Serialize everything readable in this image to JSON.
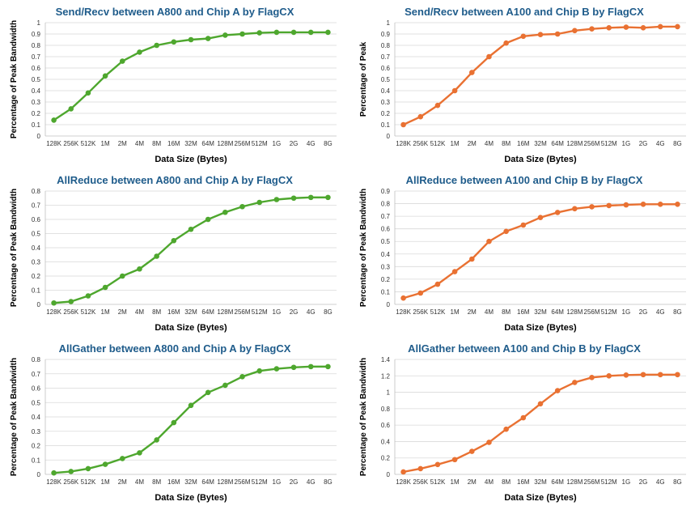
{
  "chart_data": [
    {
      "type": "line",
      "title": "Send/Recv between A800 and Chip A by FlagCX",
      "xlabel": "Data Size (Bytes)",
      "ylabel": "Percentage of Peak Bandwidth",
      "categories": [
        "128K",
        "256K",
        "512K",
        "1M",
        "2M",
        "4M",
        "8M",
        "16M",
        "32M",
        "64M",
        "128M",
        "256M",
        "512M",
        "1G",
        "2G",
        "4G",
        "8G"
      ],
      "ylim": [
        0,
        1
      ],
      "ystep": 0.1,
      "yticks": [
        "0",
        "0.1",
        "0.2",
        "0.3",
        "0.4",
        "0.5",
        "0.6",
        "0.7",
        "0.8",
        "0.9",
        "1"
      ],
      "color": "#4ea72e",
      "title_color": "#1f5c8b",
      "grid": true,
      "series": [
        {
          "values": [
            0.14,
            0.24,
            0.38,
            0.53,
            0.66,
            0.74,
            0.8,
            0.83,
            0.85,
            0.86,
            0.89,
            0.9,
            0.91,
            0.915,
            0.915,
            0.915,
            0.915
          ]
        }
      ]
    },
    {
      "type": "line",
      "title": "Send/Recv between A100 and Chip B by FlagCX",
      "xlabel": "Data Size (Bytes)",
      "ylabel": "Percentage of Peak",
      "categories": [
        "128K",
        "256K",
        "512K",
        "1M",
        "2M",
        "4M",
        "8M",
        "16M",
        "32M",
        "64M",
        "128M",
        "256M",
        "512M",
        "1G",
        "2G",
        "4G",
        "8G"
      ],
      "ylim": [
        0,
        1
      ],
      "ystep": 0.1,
      "yticks": [
        "0",
        "0.1",
        "0.2",
        "0.3",
        "0.4",
        "0.5",
        "0.6",
        "0.7",
        "0.8",
        "0.9",
        "1"
      ],
      "color": "#e97132",
      "title_color": "#1f5c8b",
      "grid": true,
      "series": [
        {
          "values": [
            0.1,
            0.17,
            0.27,
            0.4,
            0.56,
            0.7,
            0.82,
            0.88,
            0.895,
            0.9,
            0.93,
            0.945,
            0.955,
            0.96,
            0.955,
            0.965,
            0.965
          ]
        }
      ]
    },
    {
      "type": "line",
      "title": "AllReduce between A800 and Chip A by FlagCX",
      "xlabel": "Data Size (Bytes)",
      "ylabel": "Percentage of Peak Bandwidth",
      "categories": [
        "128K",
        "256K",
        "512K",
        "1M",
        "2M",
        "4M",
        "8M",
        "16M",
        "32M",
        "64M",
        "128M",
        "256M",
        "512M",
        "1G",
        "2G",
        "4G",
        "8G"
      ],
      "ylim": [
        0,
        0.8
      ],
      "ystep": 0.1,
      "yticks": [
        "0",
        "0.1",
        "0.2",
        "0.3",
        "0.4",
        "0.5",
        "0.6",
        "0.7",
        "0.8"
      ],
      "color": "#4ea72e",
      "title_color": "#1f5c8b",
      "grid": true,
      "series": [
        {
          "values": [
            0.01,
            0.02,
            0.06,
            0.12,
            0.2,
            0.25,
            0.34,
            0.45,
            0.53,
            0.6,
            0.65,
            0.69,
            0.72,
            0.74,
            0.75,
            0.755,
            0.755
          ]
        }
      ]
    },
    {
      "type": "line",
      "title": "AllReduce between A100 and Chip B by FlagCX",
      "xlabel": "Data Size (Bytes)",
      "ylabel": "Percentage of Peak Bandwidth",
      "categories": [
        "128K",
        "256K",
        "512K",
        "1M",
        "2M",
        "4M",
        "8M",
        "16M",
        "32M",
        "64M",
        "128M",
        "256M",
        "512M",
        "1G",
        "2G",
        "4G",
        "8G"
      ],
      "ylim": [
        0,
        0.9
      ],
      "ystep": 0.1,
      "yticks": [
        "0",
        "0.1",
        "0.2",
        "0.3",
        "0.4",
        "0.5",
        "0.6",
        "0.7",
        "0.8",
        "0.9"
      ],
      "color": "#e97132",
      "title_color": "#1f5c8b",
      "grid": true,
      "series": [
        {
          "values": [
            0.05,
            0.09,
            0.16,
            0.26,
            0.36,
            0.5,
            0.58,
            0.63,
            0.69,
            0.73,
            0.76,
            0.775,
            0.785,
            0.79,
            0.795,
            0.795,
            0.795
          ]
        }
      ]
    },
    {
      "type": "line",
      "title": "AllGather between A800 and Chip A by FlagCX",
      "xlabel": "Data Size (Bytes)",
      "ylabel": "Percentage of Peak Bandwidth",
      "categories": [
        "128K",
        "256K",
        "512K",
        "1M",
        "2M",
        "4M",
        "8M",
        "16M",
        "32M",
        "64M",
        "128M",
        "256M",
        "512M",
        "1G",
        "2G",
        "4G",
        "8G"
      ],
      "ylim": [
        0,
        0.8
      ],
      "ystep": 0.1,
      "yticks": [
        "0",
        "0.1",
        "0.2",
        "0.3",
        "0.4",
        "0.5",
        "0.6",
        "0.7",
        "0.8"
      ],
      "color": "#4ea72e",
      "title_color": "#1f5c8b",
      "grid": true,
      "series": [
        {
          "values": [
            0.01,
            0.02,
            0.04,
            0.07,
            0.11,
            0.15,
            0.24,
            0.36,
            0.48,
            0.57,
            0.62,
            0.68,
            0.72,
            0.735,
            0.745,
            0.75,
            0.75
          ]
        }
      ]
    },
    {
      "type": "line",
      "title": "AllGather between A100 and Chip B by FlagCX",
      "xlabel": "Data Size (Bytes)",
      "ylabel": "Percentage of Peak Bandwidth",
      "categories": [
        "128K",
        "256K",
        "512K",
        "1M",
        "2M",
        "4M",
        "8M",
        "16M",
        "32M",
        "64M",
        "128M",
        "256M",
        "512M",
        "1G",
        "2G",
        "4G",
        "8G"
      ],
      "ylim": [
        0,
        1.4
      ],
      "ystep": 0.2,
      "yticks": [
        "0",
        "0.2",
        "0.4",
        "0.6",
        "0.8",
        "1",
        "1.2",
        "1.4"
      ],
      "color": "#e97132",
      "title_color": "#1f5c8b",
      "grid": true,
      "series": [
        {
          "values": [
            0.03,
            0.07,
            0.12,
            0.18,
            0.28,
            0.39,
            0.55,
            0.69,
            0.86,
            1.02,
            1.12,
            1.18,
            1.2,
            1.21,
            1.215,
            1.215,
            1.215
          ]
        }
      ]
    }
  ]
}
